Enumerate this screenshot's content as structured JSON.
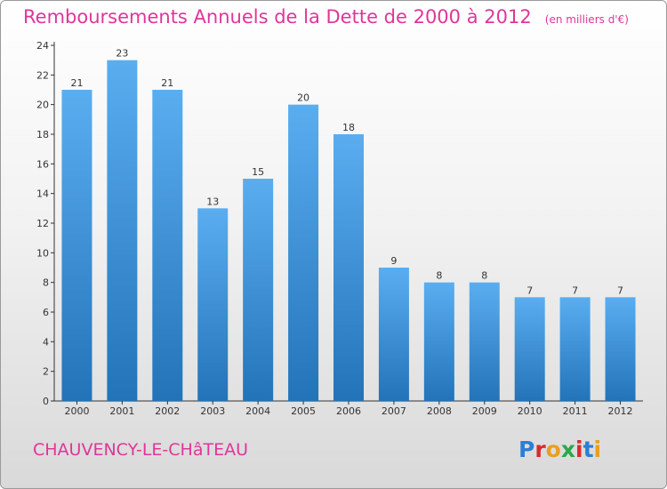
{
  "header": {
    "title": "Remboursements Annuels de la Dette de 2000 à 2012",
    "unit": "(en milliers d'€)"
  },
  "footer": {
    "commune": "CHAUVENCY-LE-CHâTEAU",
    "logo": "Proxiti",
    "logo_colors": [
      "#2a7fd6",
      "#d92a2a",
      "#e8a020",
      "#2aa84a",
      "#d92a2a",
      "#2a7fd6",
      "#e8a020"
    ]
  },
  "colors": {
    "accent": "#e0359a",
    "bar": "#2e87d0",
    "bar_light": "#5aaef0"
  },
  "chart_data": {
    "type": "bar",
    "title": "Remboursements Annuels de la Dette de 2000 à 2012",
    "xlabel": "",
    "ylabel": "",
    "categories": [
      "2000",
      "2001",
      "2002",
      "2003",
      "2004",
      "2005",
      "2006",
      "2007",
      "2008",
      "2009",
      "2010",
      "2011",
      "2012"
    ],
    "values": [
      21,
      23,
      21,
      13,
      15,
      20,
      18,
      9,
      8,
      8,
      7,
      7,
      7
    ],
    "ylim": [
      0,
      24
    ],
    "yticks": [
      0,
      2,
      4,
      6,
      8,
      10,
      12,
      14,
      16,
      18,
      20,
      22,
      24
    ],
    "grid": false,
    "legend": "none"
  }
}
